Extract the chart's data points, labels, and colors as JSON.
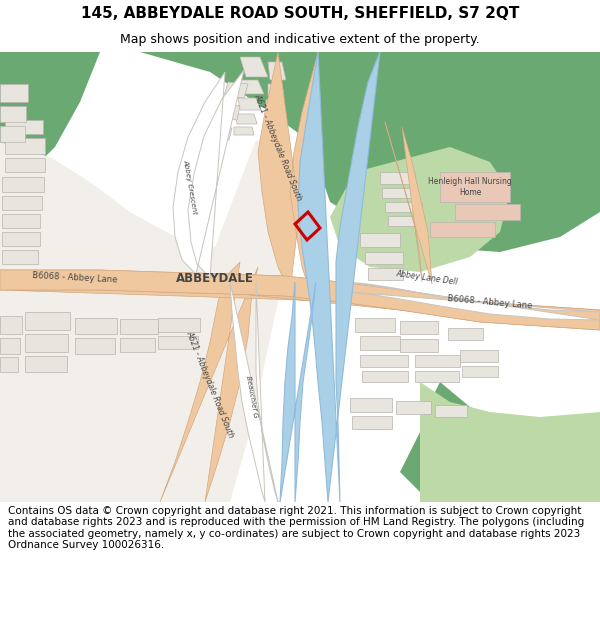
{
  "title": "145, ABBEYDALE ROAD SOUTH, SHEFFIELD, S7 2QT",
  "subtitle": "Map shows position and indicative extent of the property.",
  "footer": "Contains OS data © Crown copyright and database right 2021. This information is subject to Crown copyright and database rights 2023 and is reproduced with the permission of HM Land Registry. The polygons (including the associated geometry, namely x, y co-ordinates) are subject to Crown copyright and database rights 2023 Ordnance Survey 100026316.",
  "map_bg": "#f2efea",
  "green_dark": "#6aaa72",
  "green_light": "#bdd9a8",
  "road_major_fill": "#f0c8a0",
  "road_major_edge": "#d4a880",
  "road_minor_fill": "#ffffff",
  "road_minor_edge": "#c8c4be",
  "water_fill": "#aad0e8",
  "water_edge": "#90bbda",
  "building_fill": "#e8e4de",
  "building_edge": "#b8b4ae",
  "pink_building": "#eac8b8",
  "plot_edge": "#cc0000",
  "white": "#ffffff",
  "title_fs": 11,
  "sub_fs": 9,
  "footer_fs": 7.5,
  "label_fs": 6.5,
  "small_fs": 5.5
}
